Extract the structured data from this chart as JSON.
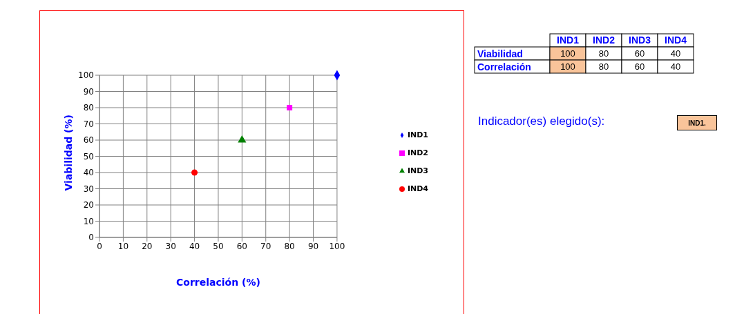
{
  "chart_data": [
    {
      "type": "scatter",
      "xlabel": "Correlación (%)",
      "ylabel": "Viabilidad (%)",
      "xlim": [
        0,
        100
      ],
      "ylim": [
        0,
        100
      ],
      "xticks": [
        0,
        10,
        20,
        30,
        40,
        50,
        60,
        70,
        80,
        90,
        100
      ],
      "yticks": [
        0,
        10,
        20,
        30,
        40,
        50,
        60,
        70,
        80,
        90,
        100
      ],
      "grid": true,
      "legend": "right",
      "series": [
        {
          "name": "IND1",
          "color": "#0000ff",
          "marker": "diamond",
          "x": [
            100
          ],
          "values": [
            100
          ]
        },
        {
          "name": "IND2",
          "color": "#ff00ff",
          "marker": "square",
          "x": [
            80
          ],
          "values": [
            80
          ]
        },
        {
          "name": "IND3",
          "color": "#008000",
          "marker": "triangle",
          "x": [
            60
          ],
          "values": [
            60
          ]
        },
        {
          "name": "IND4",
          "color": "#ff0000",
          "marker": "circle",
          "x": [
            40
          ],
          "values": [
            40
          ]
        }
      ]
    },
    {
      "type": "heatmap",
      "categories": [
        "IND1",
        "IND2",
        "IND3",
        "IND4"
      ],
      "y_categories": [
        "Viabilidad",
        "Correlación"
      ],
      "cells": [
        [
          100,
          80,
          60,
          40
        ],
        [
          100,
          80,
          60,
          40
        ]
      ],
      "data_labels": true,
      "annotations": [
        "Indicador(es) elegido(s):",
        "IND1."
      ]
    }
  ]
}
